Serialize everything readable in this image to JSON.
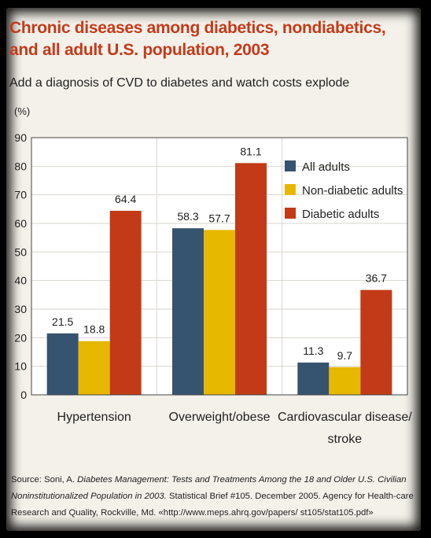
{
  "title": "Chronic diseases among diabetics, nondiabetics, and all adult U.S. population, 2003",
  "subtitle": "Add a diagnosis of CVD to diabetes and watch costs explode",
  "chart_data": {
    "type": "bar",
    "ylabel": "(%)",
    "ylim": [
      0,
      90
    ],
    "yticks": [
      0,
      10,
      20,
      30,
      40,
      50,
      60,
      70,
      80,
      90
    ],
    "grid": true,
    "legend_position": "top-right",
    "categories": [
      "Hypertension",
      "Overweight/obese",
      "Cardiovascular disease/ stroke"
    ],
    "series": [
      {
        "name": "All adults",
        "color": "#36536f",
        "values": [
          21.5,
          58.3,
          11.3
        ]
      },
      {
        "name": "Non-diabetic adults",
        "color": "#e6b800",
        "values": [
          18.8,
          57.7,
          9.7
        ]
      },
      {
        "name": "Diabetic adults",
        "color": "#c23a17",
        "values": [
          64.4,
          81.1,
          36.7
        ]
      }
    ]
  },
  "source": {
    "prefix": "Source: Soni, A. ",
    "italic": "Diabetes Management: Tests and Treatments Among the 18 and Older U.S. Civilian Noninstitutionalized Population in 2003.",
    "suffix": " Statistical Brief #105. December 2005. Agency for Health-care Research and Quality, Rockville, Md. «http://www.meps.ahrq.gov/papers/ st105/stat105.pdf»"
  }
}
